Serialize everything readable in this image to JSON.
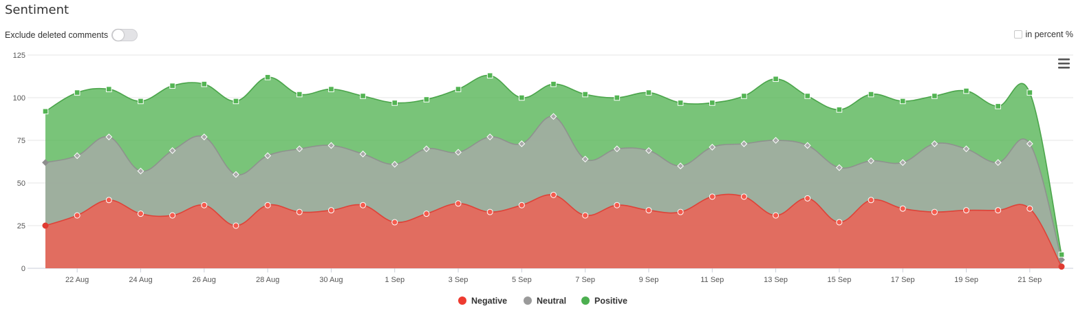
{
  "header": {
    "title": "Sentiment",
    "exclude_label": "Exclude deleted comments",
    "percent_label": "in percent %"
  },
  "colors": {
    "negative": "#f45b4e",
    "neutral": "#a9a9a9",
    "positive": "#53b453",
    "negative_marker": "#e03b31",
    "neutral_marker": "#8e8e8e",
    "positive_marker": "#3f9f3f"
  },
  "chart_data": {
    "type": "area",
    "stacked": true,
    "x": [
      "21 Aug",
      "22 Aug",
      "23 Aug",
      "24 Aug",
      "25 Aug",
      "26 Aug",
      "27 Aug",
      "28 Aug",
      "29 Aug",
      "30 Aug",
      "31 Aug",
      "1 Sep",
      "2 Sep",
      "3 Sep",
      "4 Sep",
      "5 Sep",
      "6 Sep",
      "7 Sep",
      "8 Sep",
      "9 Sep",
      "10 Sep",
      "11 Sep",
      "12 Sep",
      "13 Sep",
      "14 Sep",
      "15 Sep",
      "16 Sep",
      "17 Sep",
      "18 Sep",
      "19 Sep",
      "20 Sep",
      "21 Sep",
      "22 Sep"
    ],
    "x_tick_labels": [
      "22 Aug",
      "24 Aug",
      "26 Aug",
      "28 Aug",
      "30 Aug",
      "1 Sep",
      "3 Sep",
      "5 Sep",
      "7 Sep",
      "9 Sep",
      "11 Sep",
      "13 Sep",
      "15 Sep",
      "17 Sep",
      "19 Sep",
      "21 Sep"
    ],
    "y_ticks": [
      0,
      25,
      50,
      75,
      100,
      125
    ],
    "ylim": [
      0,
      125
    ],
    "grid": true,
    "legend_position": "bottom-center",
    "series": [
      {
        "name": "Negative",
        "values": [
          25,
          31,
          40,
          32,
          31,
          37,
          25,
          37,
          33,
          34,
          37,
          27,
          32,
          38,
          33,
          37,
          43,
          31,
          37,
          34,
          33,
          42,
          42,
          31,
          41,
          27,
          40,
          35,
          33,
          34,
          34,
          35,
          1
        ]
      },
      {
        "name": "Neutral",
        "values": [
          37,
          35,
          37,
          25,
          38,
          40,
          30,
          29,
          37,
          38,
          30,
          34,
          38,
          30,
          44,
          36,
          46,
          33,
          33,
          35,
          27,
          29,
          31,
          44,
          31,
          32,
          23,
          27,
          40,
          36,
          28,
          38,
          4
        ]
      },
      {
        "name": "Positive",
        "values": [
          30,
          37,
          28,
          41,
          38,
          31,
          43,
          46,
          32,
          33,
          34,
          36,
          29,
          37,
          36,
          27,
          19,
          38,
          30,
          34,
          37,
          26,
          28,
          36,
          29,
          34,
          39,
          36,
          28,
          34,
          33,
          30,
          3
        ]
      }
    ]
  }
}
